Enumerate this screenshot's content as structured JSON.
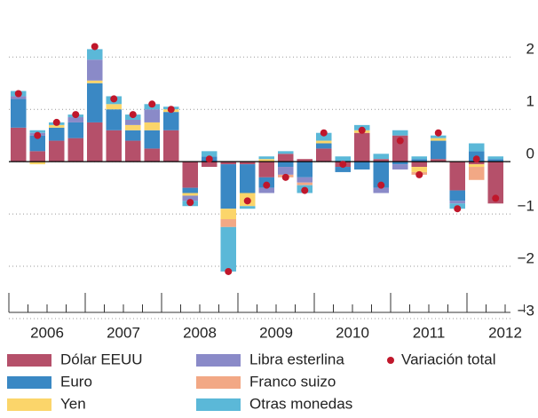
{
  "chart_data": {
    "type": "stacked_bar",
    "categories": [
      "2006",
      null,
      null,
      null,
      "2007",
      null,
      null,
      null,
      "2008",
      null,
      null,
      null,
      "2009",
      null,
      null,
      null,
      "2010",
      null,
      null,
      null,
      "2011",
      null,
      null,
      null,
      "2012",
      null
    ],
    "series": [
      {
        "name": "Dólar EEUU",
        "color": "#b5506a",
        "values": [
          0.65,
          0.2,
          0.4,
          0.45,
          0.75,
          0.6,
          0.4,
          0.25,
          0.6,
          -0.5,
          -0.1,
          -0.05,
          -0.05,
          -0.3,
          0.15,
          0.05,
          0.25,
          -0.1,
          0.55,
          0.05,
          0.5,
          -0.1,
          0.05,
          -0.55,
          -0.05,
          -0.8
        ]
      },
      {
        "name": "Euro",
        "color": "#3a88c4",
        "values": [
          0.55,
          0.3,
          0.25,
          0.3,
          0.75,
          0.4,
          0.2,
          0.35,
          0.35,
          -0.1,
          0.1,
          -0.85,
          -0.55,
          -0.2,
          -0.1,
          -0.3,
          0.1,
          -0.1,
          -0.15,
          -0.5,
          -0.05,
          0.05,
          0.35,
          -0.2,
          0.2,
          0.05
        ]
      },
      {
        "name": "Yen",
        "color": "#fbd56a",
        "values": [
          0,
          -0.05,
          0.05,
          0,
          0.05,
          0.1,
          0.1,
          0.15,
          0.05,
          -0.05,
          0,
          -0.2,
          -0.25,
          0.05,
          0,
          0,
          0.05,
          0,
          0.05,
          0,
          0,
          -0.1,
          0.05,
          0,
          -0.05,
          0
        ]
      },
      {
        "name": "Libra esterlina",
        "color": "#8a8ac8",
        "values": [
          0.05,
          0.05,
          0,
          0.1,
          0.4,
          0,
          0.1,
          0.25,
          0,
          -0.1,
          0,
          0,
          0,
          -0.1,
          -0.15,
          -0.1,
          0,
          0,
          0,
          -0.1,
          -0.1,
          0,
          0,
          -0.05,
          0,
          0
        ]
      },
      {
        "name": "Franco suizo",
        "color": "#f2a885",
        "values": [
          0,
          0,
          0,
          0,
          0,
          0,
          0,
          0,
          0,
          0,
          0,
          -0.15,
          0,
          0,
          -0.05,
          -0.05,
          0,
          0,
          0,
          0,
          0,
          -0.05,
          0,
          0,
          -0.25,
          0
        ]
      },
      {
        "name": "Otras monedas",
        "color": "#5bb8d8",
        "values": [
          0.1,
          0.05,
          0.05,
          0.05,
          0.2,
          0.15,
          0.1,
          0.1,
          0.05,
          -0.1,
          0.1,
          -0.85,
          -0.05,
          0.05,
          0.05,
          -0.15,
          0.15,
          0.1,
          0.1,
          0.1,
          0.1,
          0.05,
          0.05,
          -0.1,
          0.15,
          0.05
        ]
      }
    ],
    "total": {
      "name": "Variación total",
      "color": "#c0172b",
      "values": [
        1.3,
        0.5,
        0.75,
        0.9,
        2.2,
        1.2,
        0.9,
        1.1,
        1.0,
        -0.78,
        0.05,
        -2.1,
        -0.75,
        -0.45,
        -0.3,
        -0.55,
        0.55,
        -0.05,
        0.6,
        -0.45,
        0.4,
        -0.25,
        0.55,
        -0.9,
        0.05,
        -0.7
      ]
    },
    "ylim": [
      -3,
      2.92
    ],
    "yticks": [
      2,
      1,
      0,
      {
        "value": -1,
        "label": "−1"
      },
      {
        "value": -2,
        "label": "−2"
      },
      {
        "value": -3,
        "label": "−3"
      }
    ],
    "grid": true
  }
}
